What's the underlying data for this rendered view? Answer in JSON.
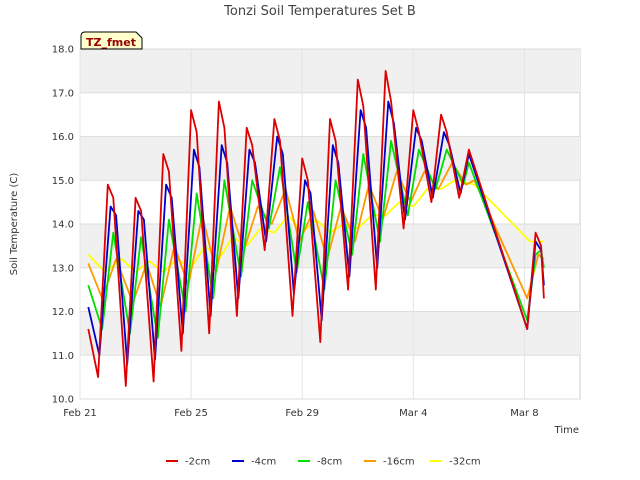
{
  "chart_data": {
    "type": "line",
    "title": "Tonzi Soil Temperatures Set B",
    "xlabel": "Time",
    "ylabel": "Soil Temperature (C)",
    "ylim": [
      10.0,
      18.0
    ],
    "xlim": [
      0,
      18
    ],
    "y_ticks": [
      "10.0",
      "11.0",
      "12.0",
      "13.0",
      "14.0",
      "15.0",
      "16.0",
      "17.0",
      "18.0"
    ],
    "x_ticks": [
      {
        "value": 0,
        "label": "Feb 21"
      },
      {
        "value": 4,
        "label": "Feb 25"
      },
      {
        "value": 8,
        "label": "Feb 29"
      },
      {
        "value": 12,
        "label": "Mar 4"
      },
      {
        "value": 16,
        "label": "Mar 8"
      }
    ],
    "grid": true,
    "legend_position": "bottom",
    "tag": "TZ_fmet",
    "series": [
      {
        "name": "-2cm",
        "color": "#dd0000",
        "points": [
          [
            0.3,
            11.6
          ],
          [
            0.65,
            10.5
          ],
          [
            1.0,
            14.9
          ],
          [
            1.2,
            14.6
          ],
          [
            1.65,
            10.3
          ],
          [
            2.0,
            14.6
          ],
          [
            2.2,
            14.3
          ],
          [
            2.65,
            10.4
          ],
          [
            3.0,
            15.6
          ],
          [
            3.2,
            15.2
          ],
          [
            3.65,
            11.1
          ],
          [
            4.0,
            16.6
          ],
          [
            4.2,
            16.1
          ],
          [
            4.65,
            11.5
          ],
          [
            5.0,
            16.8
          ],
          [
            5.2,
            16.2
          ],
          [
            5.65,
            11.9
          ],
          [
            6.0,
            16.2
          ],
          [
            6.2,
            15.8
          ],
          [
            6.65,
            13.4
          ],
          [
            7.0,
            16.4
          ],
          [
            7.2,
            15.9
          ],
          [
            7.65,
            11.9
          ],
          [
            8.0,
            15.5
          ],
          [
            8.2,
            15.0
          ],
          [
            8.65,
            11.3
          ],
          [
            9.0,
            16.4
          ],
          [
            9.2,
            15.9
          ],
          [
            9.65,
            12.5
          ],
          [
            10.0,
            17.3
          ],
          [
            10.2,
            16.7
          ],
          [
            10.65,
            12.5
          ],
          [
            11.0,
            17.5
          ],
          [
            11.2,
            16.8
          ],
          [
            11.65,
            13.9
          ],
          [
            12.0,
            16.6
          ],
          [
            12.2,
            16.1
          ],
          [
            12.65,
            14.5
          ],
          [
            13.0,
            16.5
          ],
          [
            13.2,
            16.1
          ],
          [
            13.65,
            14.6
          ],
          [
            14.0,
            15.7
          ],
          [
            16.1,
            11.6
          ],
          [
            16.4,
            13.8
          ],
          [
            16.6,
            13.5
          ],
          [
            16.7,
            12.3
          ]
        ]
      },
      {
        "name": "-4cm",
        "color": "#0000cc",
        "points": [
          [
            0.3,
            12.1
          ],
          [
            0.7,
            11.0
          ],
          [
            1.1,
            14.4
          ],
          [
            1.3,
            14.2
          ],
          [
            1.7,
            10.8
          ],
          [
            2.1,
            14.3
          ],
          [
            2.3,
            14.1
          ],
          [
            2.7,
            10.9
          ],
          [
            3.1,
            14.9
          ],
          [
            3.3,
            14.6
          ],
          [
            3.7,
            11.5
          ],
          [
            4.1,
            15.7
          ],
          [
            4.3,
            15.3
          ],
          [
            4.7,
            11.9
          ],
          [
            5.1,
            15.8
          ],
          [
            5.3,
            15.4
          ],
          [
            5.7,
            12.3
          ],
          [
            6.1,
            15.7
          ],
          [
            6.3,
            15.4
          ],
          [
            6.7,
            13.6
          ],
          [
            7.1,
            16.0
          ],
          [
            7.3,
            15.6
          ],
          [
            7.7,
            12.4
          ],
          [
            8.1,
            15.0
          ],
          [
            8.3,
            14.7
          ],
          [
            8.7,
            11.8
          ],
          [
            9.1,
            15.8
          ],
          [
            9.3,
            15.4
          ],
          [
            9.7,
            12.8
          ],
          [
            10.1,
            16.6
          ],
          [
            10.3,
            16.2
          ],
          [
            10.7,
            13.0
          ],
          [
            11.1,
            16.8
          ],
          [
            11.3,
            16.3
          ],
          [
            11.7,
            14.1
          ],
          [
            12.1,
            16.2
          ],
          [
            12.3,
            15.9
          ],
          [
            12.7,
            14.6
          ],
          [
            13.1,
            16.1
          ],
          [
            13.3,
            15.8
          ],
          [
            13.7,
            14.7
          ],
          [
            14.0,
            15.6
          ],
          [
            16.1,
            11.6
          ],
          [
            16.4,
            13.6
          ],
          [
            16.6,
            13.4
          ],
          [
            16.7,
            12.6
          ]
        ]
      },
      {
        "name": "-8cm",
        "color": "#00dd00",
        "points": [
          [
            0.3,
            12.6
          ],
          [
            0.8,
            11.6
          ],
          [
            1.2,
            13.8
          ],
          [
            1.8,
            11.5
          ],
          [
            2.2,
            13.7
          ],
          [
            2.8,
            11.4
          ],
          [
            3.2,
            14.1
          ],
          [
            3.8,
            12.0
          ],
          [
            4.2,
            14.7
          ],
          [
            4.8,
            12.3
          ],
          [
            5.2,
            15.0
          ],
          [
            5.8,
            12.8
          ],
          [
            6.2,
            15.0
          ],
          [
            6.8,
            13.9
          ],
          [
            7.2,
            15.3
          ],
          [
            7.8,
            12.9
          ],
          [
            8.2,
            14.5
          ],
          [
            8.8,
            12.5
          ],
          [
            9.2,
            15.0
          ],
          [
            9.8,
            13.3
          ],
          [
            10.2,
            15.6
          ],
          [
            10.8,
            13.6
          ],
          [
            11.2,
            15.9
          ],
          [
            11.8,
            14.2
          ],
          [
            12.2,
            15.7
          ],
          [
            12.8,
            14.8
          ],
          [
            13.2,
            15.7
          ],
          [
            13.8,
            14.9
          ],
          [
            14.0,
            15.4
          ],
          [
            16.1,
            11.8
          ],
          [
            16.4,
            13.3
          ],
          [
            16.6,
            13.4
          ],
          [
            16.7,
            13.0
          ]
        ]
      },
      {
        "name": "-16cm",
        "color": "#ff9900",
        "points": [
          [
            0.3,
            13.1
          ],
          [
            0.8,
            12.3
          ],
          [
            1.3,
            13.2
          ],
          [
            1.9,
            12.2
          ],
          [
            2.4,
            13.1
          ],
          [
            2.9,
            12.1
          ],
          [
            3.4,
            13.5
          ],
          [
            3.9,
            12.6
          ],
          [
            4.4,
            14.2
          ],
          [
            4.9,
            12.9
          ],
          [
            5.4,
            14.4
          ],
          [
            5.9,
            13.4
          ],
          [
            6.4,
            14.4
          ],
          [
            6.9,
            14.0
          ],
          [
            7.4,
            14.8
          ],
          [
            7.9,
            13.6
          ],
          [
            8.4,
            14.3
          ],
          [
            8.9,
            13.2
          ],
          [
            9.4,
            14.4
          ],
          [
            9.9,
            13.6
          ],
          [
            10.4,
            14.9
          ],
          [
            10.9,
            14.1
          ],
          [
            11.4,
            15.2
          ],
          [
            11.9,
            14.5
          ],
          [
            12.4,
            15.2
          ],
          [
            12.9,
            14.8
          ],
          [
            13.4,
            15.4
          ],
          [
            13.9,
            14.9
          ],
          [
            14.2,
            15.0
          ],
          [
            16.1,
            12.3
          ],
          [
            16.5,
            13.3
          ],
          [
            16.7,
            13.2
          ]
        ]
      },
      {
        "name": "-32cm",
        "color": "#ffff00",
        "points": [
          [
            0.3,
            13.3
          ],
          [
            0.9,
            12.9
          ],
          [
            1.5,
            13.2
          ],
          [
            2.0,
            12.9
          ],
          [
            2.5,
            13.15
          ],
          [
            3.0,
            12.9
          ],
          [
            3.5,
            13.2
          ],
          [
            4.0,
            13.0
          ],
          [
            4.5,
            13.5
          ],
          [
            5.0,
            13.2
          ],
          [
            5.5,
            13.7
          ],
          [
            6.0,
            13.5
          ],
          [
            6.5,
            13.9
          ],
          [
            7.0,
            13.8
          ],
          [
            7.5,
            14.2
          ],
          [
            8.0,
            13.8
          ],
          [
            8.5,
            14.1
          ],
          [
            9.0,
            13.8
          ],
          [
            9.5,
            14.0
          ],
          [
            10.0,
            13.9
          ],
          [
            10.5,
            14.2
          ],
          [
            11.0,
            14.2
          ],
          [
            11.5,
            14.5
          ],
          [
            12.0,
            14.4
          ],
          [
            12.5,
            14.8
          ],
          [
            13.0,
            14.8
          ],
          [
            13.5,
            15.0
          ],
          [
            14.2,
            14.9
          ],
          [
            16.2,
            13.6
          ],
          [
            16.7,
            13.6
          ]
        ]
      }
    ]
  }
}
